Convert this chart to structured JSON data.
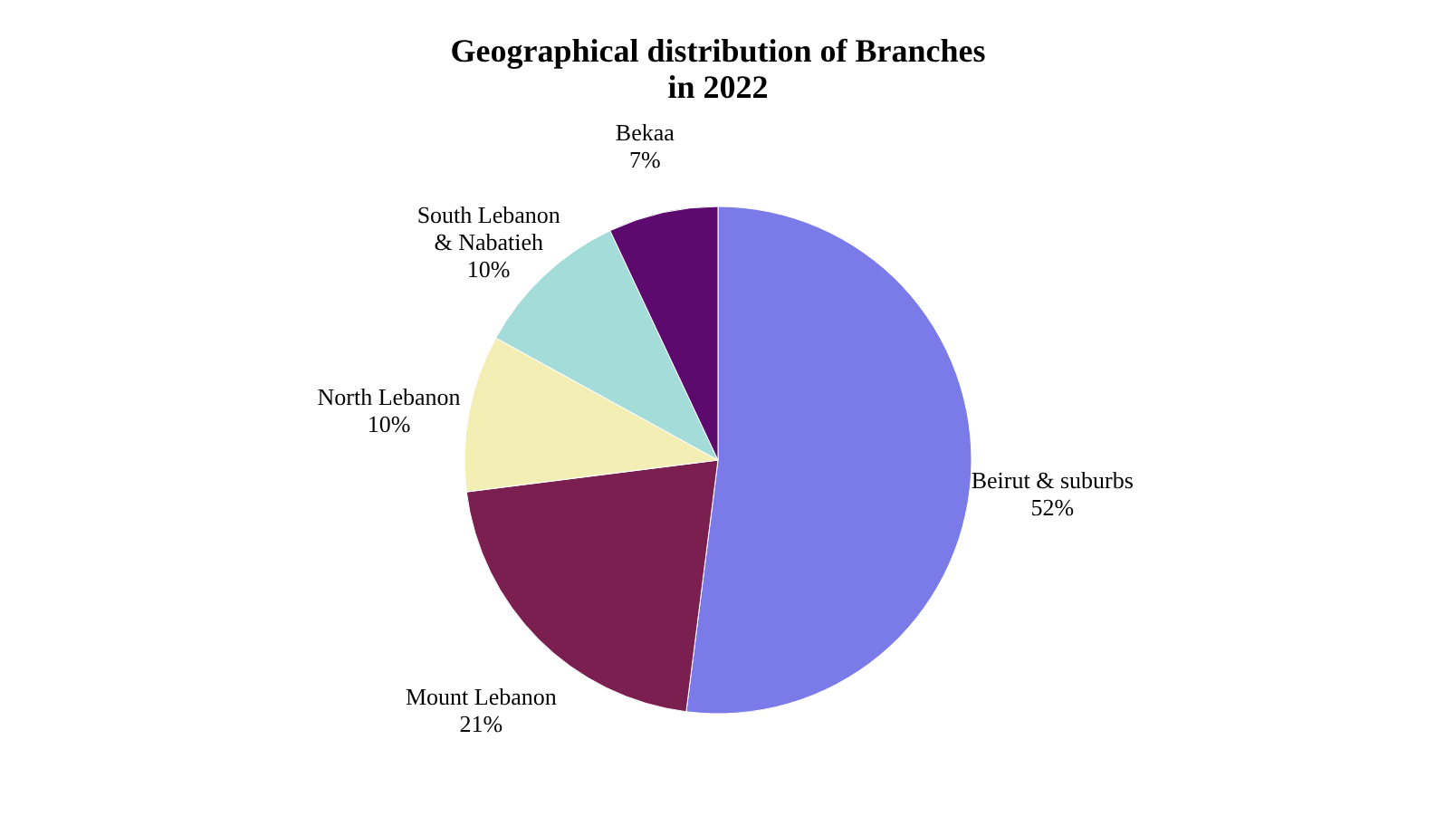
{
  "chart_data": {
    "type": "pie",
    "title": "Geographical distribution of Branches\nin 2022",
    "categories": [
      "Beirut & suburbs",
      "Mount Lebanon",
      "North Lebanon",
      "South Lebanon & Nabatieh",
      "Bekaa"
    ],
    "values": [
      52,
      21,
      10,
      10,
      7
    ],
    "value_labels": [
      "52%",
      "21%",
      "10%",
      "10%",
      "7%"
    ],
    "colors": [
      "#7a7ae8",
      "#7a1f4f",
      "#f3efb4",
      "#a3dcd8",
      "#5c0a6e"
    ]
  }
}
